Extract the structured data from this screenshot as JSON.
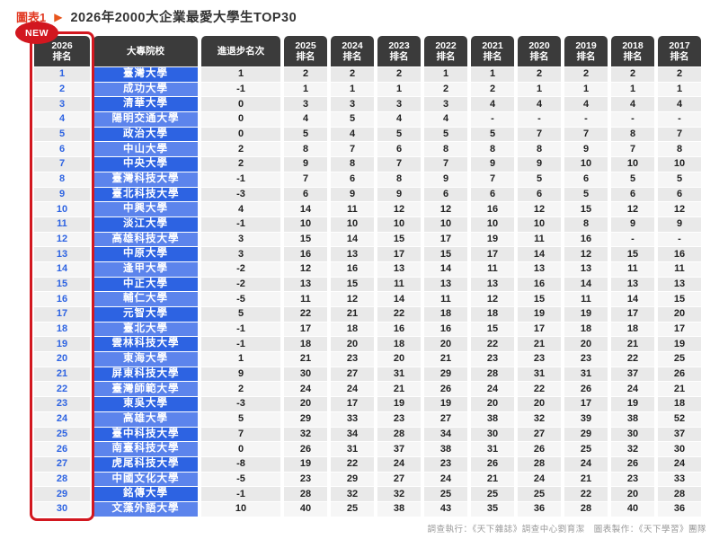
{
  "figure_label": "圖表1",
  "arrow": "▶",
  "title": "2026年2000大企業最愛大學生TOP30",
  "new_badge": "NEW",
  "footer": "調查執行：《天下雜誌》調查中心劉育潔　圖表製作：《天下學習》團隊",
  "colors": {
    "header_bg": "#3b3b3b",
    "accent_red": "#d2171f",
    "title_red": "#e23c25",
    "school_blue_dark": "#2d63e2",
    "school_blue_light": "#5c84ec",
    "rank_text_blue": "#2d63e2",
    "cell_gray_odd": "#e9e9e9",
    "cell_gray_even": "#f6f6f6"
  },
  "header_labels": {
    "rank_year": "2026",
    "rank_sub": "排名",
    "school": "大專院校",
    "change": "進退步名次",
    "years": [
      "2025",
      "2024",
      "2023",
      "2022",
      "2021",
      "2020",
      "2019",
      "2018",
      "2017"
    ],
    "year_sub": "排名"
  },
  "chart_data": {
    "type": "table",
    "title": "2026年2000大企業最愛大學生TOP30",
    "columns": [
      "2026排名",
      "大專院校",
      "進退步名次",
      "2025排名",
      "2024排名",
      "2023排名",
      "2022排名",
      "2021排名",
      "2020排名",
      "2019排名",
      "2018排名",
      "2017排名"
    ],
    "rows": [
      {
        "rank": "1",
        "school": "臺灣大學",
        "change": "1",
        "values": [
          "2",
          "2",
          "2",
          "1",
          "1",
          "2",
          "2",
          "2",
          "2"
        ]
      },
      {
        "rank": "2",
        "school": "成功大學",
        "change": "-1",
        "values": [
          "1",
          "1",
          "1",
          "2",
          "2",
          "1",
          "1",
          "1",
          "1"
        ]
      },
      {
        "rank": "3",
        "school": "清華大學",
        "change": "0",
        "values": [
          "3",
          "3",
          "3",
          "3",
          "4",
          "4",
          "4",
          "4",
          "4"
        ]
      },
      {
        "rank": "4",
        "school": "陽明交通大學",
        "change": "0",
        "values": [
          "4",
          "5",
          "4",
          "4",
          "-",
          "-",
          "-",
          "-",
          "-"
        ]
      },
      {
        "rank": "5",
        "school": "政治大學",
        "change": "0",
        "values": [
          "5",
          "4",
          "5",
          "5",
          "5",
          "7",
          "7",
          "8",
          "7"
        ]
      },
      {
        "rank": "6",
        "school": "中山大學",
        "change": "2",
        "values": [
          "8",
          "7",
          "6",
          "8",
          "8",
          "8",
          "9",
          "7",
          "8"
        ]
      },
      {
        "rank": "7",
        "school": "中央大學",
        "change": "2",
        "values": [
          "9",
          "8",
          "7",
          "7",
          "9",
          "9",
          "10",
          "10",
          "10"
        ]
      },
      {
        "rank": "8",
        "school": "臺灣科技大學",
        "change": "-1",
        "values": [
          "7",
          "6",
          "8",
          "9",
          "7",
          "5",
          "6",
          "5",
          "5"
        ]
      },
      {
        "rank": "9",
        "school": "臺北科技大學",
        "change": "-3",
        "values": [
          "6",
          "9",
          "9",
          "6",
          "6",
          "6",
          "5",
          "6",
          "6"
        ]
      },
      {
        "rank": "10",
        "school": "中興大學",
        "change": "4",
        "values": [
          "14",
          "11",
          "12",
          "12",
          "16",
          "12",
          "15",
          "12",
          "12"
        ]
      },
      {
        "rank": "11",
        "school": "淡江大學",
        "change": "-1",
        "values": [
          "10",
          "10",
          "10",
          "10",
          "10",
          "10",
          "8",
          "9",
          "9"
        ]
      },
      {
        "rank": "12",
        "school": "高雄科技大學",
        "change": "3",
        "values": [
          "15",
          "14",
          "15",
          "17",
          "19",
          "11",
          "16",
          "-",
          "-"
        ]
      },
      {
        "rank": "13",
        "school": "中原大學",
        "change": "3",
        "values": [
          "16",
          "13",
          "17",
          "15",
          "17",
          "14",
          "12",
          "15",
          "16"
        ]
      },
      {
        "rank": "14",
        "school": "逢甲大學",
        "change": "-2",
        "values": [
          "12",
          "16",
          "13",
          "14",
          "11",
          "13",
          "13",
          "11",
          "11"
        ]
      },
      {
        "rank": "15",
        "school": "中正大學",
        "change": "-2",
        "values": [
          "13",
          "15",
          "11",
          "13",
          "13",
          "16",
          "14",
          "13",
          "13"
        ]
      },
      {
        "rank": "16",
        "school": "輔仁大學",
        "change": "-5",
        "values": [
          "11",
          "12",
          "14",
          "11",
          "12",
          "15",
          "11",
          "14",
          "15"
        ]
      },
      {
        "rank": "17",
        "school": "元智大學",
        "change": "5",
        "values": [
          "22",
          "21",
          "22",
          "18",
          "18",
          "19",
          "19",
          "17",
          "20"
        ]
      },
      {
        "rank": "18",
        "school": "臺北大學",
        "change": "-1",
        "values": [
          "17",
          "18",
          "16",
          "16",
          "15",
          "17",
          "18",
          "18",
          "17"
        ]
      },
      {
        "rank": "19",
        "school": "雲林科技大學",
        "change": "-1",
        "values": [
          "18",
          "20",
          "18",
          "20",
          "22",
          "21",
          "20",
          "21",
          "19"
        ]
      },
      {
        "rank": "20",
        "school": "東海大學",
        "change": "1",
        "values": [
          "21",
          "23",
          "20",
          "21",
          "23",
          "23",
          "23",
          "22",
          "25"
        ]
      },
      {
        "rank": "21",
        "school": "屏東科技大學",
        "change": "9",
        "values": [
          "30",
          "27",
          "31",
          "29",
          "28",
          "31",
          "31",
          "37",
          "26"
        ]
      },
      {
        "rank": "22",
        "school": "臺灣師範大學",
        "change": "2",
        "values": [
          "24",
          "24",
          "21",
          "26",
          "24",
          "22",
          "26",
          "24",
          "21"
        ]
      },
      {
        "rank": "23",
        "school": "東吳大學",
        "change": "-3",
        "values": [
          "20",
          "17",
          "19",
          "19",
          "20",
          "20",
          "17",
          "19",
          "18"
        ]
      },
      {
        "rank": "24",
        "school": "高雄大學",
        "change": "5",
        "values": [
          "29",
          "33",
          "23",
          "27",
          "38",
          "32",
          "39",
          "38",
          "52"
        ]
      },
      {
        "rank": "25",
        "school": "臺中科技大學",
        "change": "7",
        "values": [
          "32",
          "34",
          "28",
          "34",
          "30",
          "27",
          "29",
          "30",
          "37"
        ]
      },
      {
        "rank": "26",
        "school": "南臺科技大學",
        "change": "0",
        "values": [
          "26",
          "31",
          "37",
          "38",
          "31",
          "26",
          "25",
          "32",
          "30"
        ]
      },
      {
        "rank": "27",
        "school": "虎尾科技大學",
        "change": "-8",
        "values": [
          "19",
          "22",
          "24",
          "23",
          "26",
          "28",
          "24",
          "26",
          "24"
        ]
      },
      {
        "rank": "28",
        "school": "中國文化大學",
        "change": "-5",
        "values": [
          "23",
          "29",
          "27",
          "24",
          "21",
          "24",
          "21",
          "23",
          "33"
        ]
      },
      {
        "rank": "29",
        "school": "銘傳大學",
        "change": "-1",
        "values": [
          "28",
          "32",
          "32",
          "25",
          "25",
          "25",
          "22",
          "20",
          "28"
        ]
      },
      {
        "rank": "30",
        "school": "文藻外語大學",
        "change": "10",
        "values": [
          "40",
          "25",
          "38",
          "43",
          "35",
          "36",
          "28",
          "40",
          "36"
        ]
      }
    ]
  }
}
